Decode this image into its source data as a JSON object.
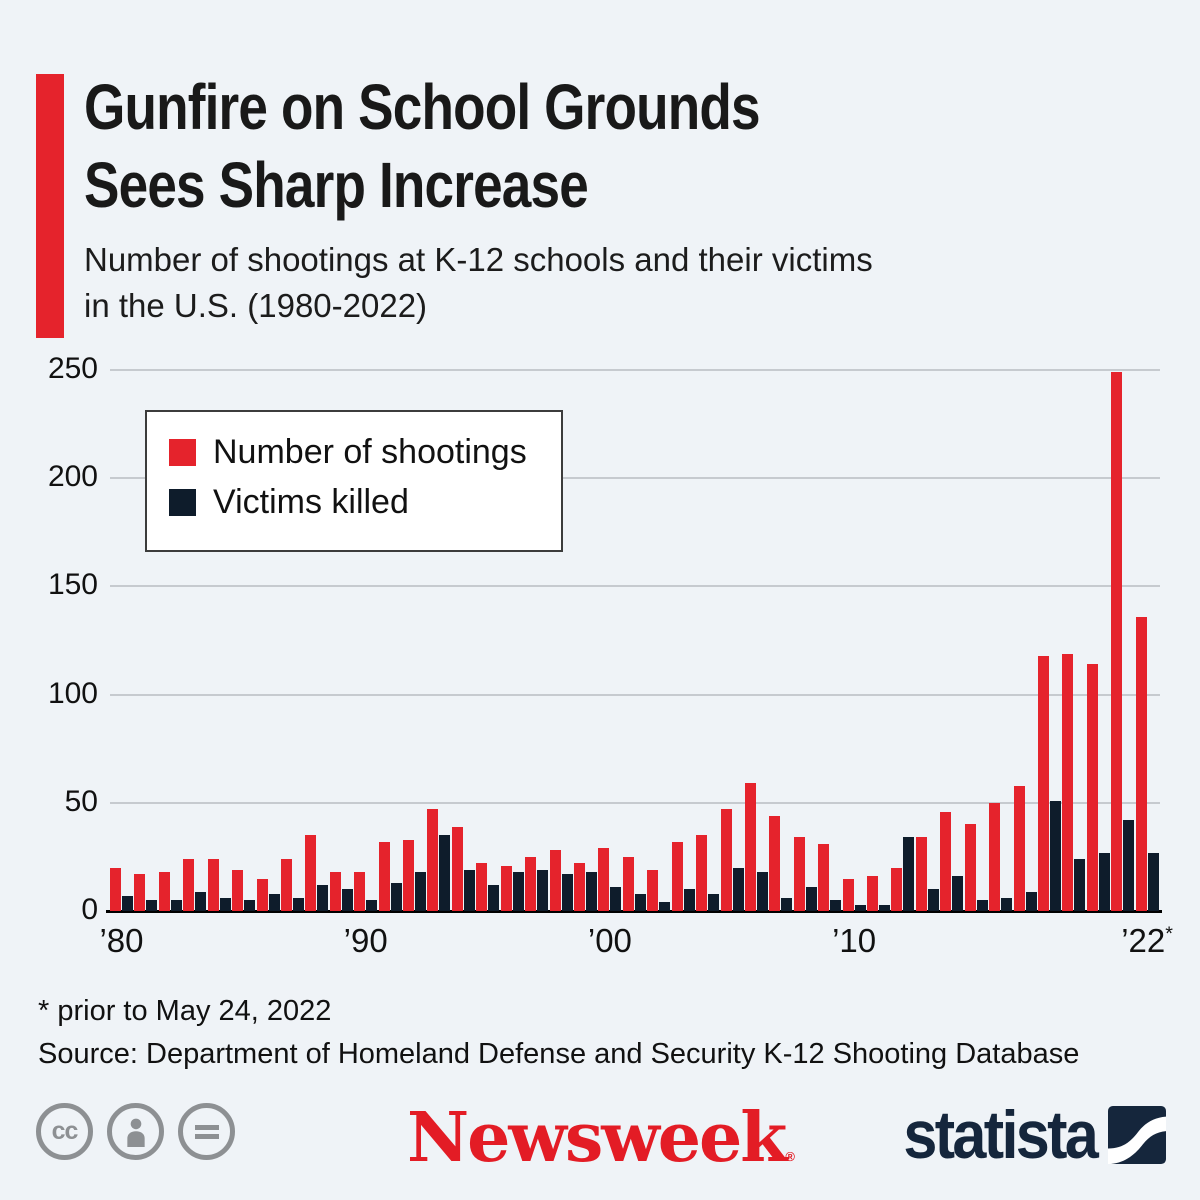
{
  "colors": {
    "background": "#eff3f7",
    "red": "#e5232c",
    "navy": "#0e1c2b",
    "grid": "#c6cacf",
    "newsweek_red": "#e31c25",
    "statista_navy": "#15263c",
    "cc_gray": "#8d9093"
  },
  "header": {
    "title_lines": [
      "Gunfire on School Grounds",
      "Sees Sharp Increase"
    ],
    "subtitle_lines": [
      "Number of shootings at K-12 schools and their victims",
      "in the U.S. (1980-2022)"
    ]
  },
  "legend": [
    {
      "label": "Number of shootings",
      "color": "#e5232c"
    },
    {
      "label": "Victims killed",
      "color": "#0e1c2b"
    }
  ],
  "chart_data": {
    "type": "bar",
    "title": "Gunfire on School Grounds Sees Sharp Increase",
    "xlabel": "",
    "ylabel": "",
    "x": [
      1980,
      1981,
      1982,
      1983,
      1984,
      1985,
      1986,
      1987,
      1988,
      1989,
      1990,
      1991,
      1992,
      1993,
      1994,
      1995,
      1996,
      1997,
      1998,
      1999,
      2000,
      2001,
      2002,
      2003,
      2004,
      2005,
      2006,
      2007,
      2008,
      2009,
      2010,
      2011,
      2012,
      2013,
      2014,
      2015,
      2016,
      2017,
      2018,
      2019,
      2020,
      2021,
      2022
    ],
    "series": [
      {
        "name": "Number of shootings",
        "color": "#e5232c",
        "values": [
          20,
          17,
          18,
          24,
          24,
          19,
          15,
          24,
          35,
          18,
          18,
          32,
          33,
          47,
          39,
          22,
          21,
          25,
          28,
          22,
          29,
          25,
          19,
          32,
          35,
          47,
          59,
          44,
          34,
          31,
          15,
          16,
          20,
          34,
          46,
          40,
          50,
          58,
          118,
          119,
          114,
          249,
          136
        ]
      },
      {
        "name": "Victims killed",
        "color": "#0e1c2b",
        "values": [
          7,
          5,
          5,
          9,
          6,
          5,
          8,
          6,
          12,
          10,
          5,
          13,
          18,
          35,
          19,
          12,
          18,
          19,
          17,
          18,
          11,
          8,
          4,
          10,
          8,
          20,
          18,
          6,
          11,
          5,
          3,
          3,
          34,
          10,
          16,
          5,
          6,
          9,
          51,
          24,
          27,
          42,
          27
        ]
      }
    ],
    "ylim": [
      0,
      250
    ],
    "yticks": [
      0,
      50,
      100,
      150,
      200,
      250
    ],
    "xticks": [
      {
        "year": 1980,
        "label": "’80",
        "suffix": ""
      },
      {
        "year": 1990,
        "label": "’90",
        "suffix": ""
      },
      {
        "year": 2000,
        "label": "’00",
        "suffix": ""
      },
      {
        "year": 2010,
        "label": "’10",
        "suffix": ""
      },
      {
        "year": 2022,
        "label": "’22",
        "suffix": "*"
      }
    ],
    "grid": "horizontal",
    "legend_position": "upper-left-inset"
  },
  "footnote": "* prior to May 24, 2022",
  "source": "Source: Department of Homeland Defense and Security K-12 Shooting Database",
  "footer": {
    "cc_icon_text": "cc",
    "newsweek_logo_text": "Newsweek",
    "newsweek_reg_mark": "®",
    "statista_logo_text": "statista"
  }
}
